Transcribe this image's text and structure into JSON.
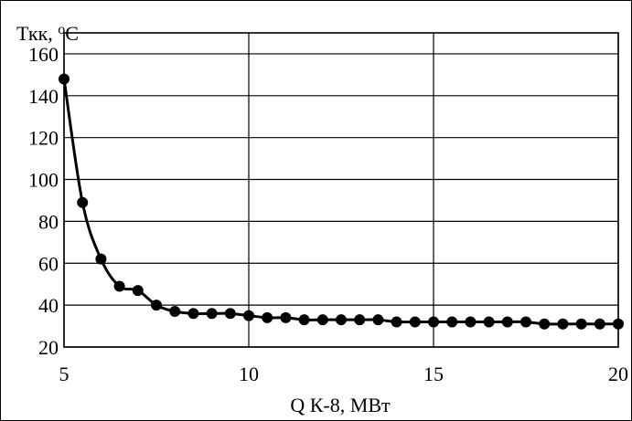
{
  "chart_data": {
    "type": "line",
    "ylabel": "Ткк, ",
    "ylabel_sup": "о",
    "ylabel_unit": "С",
    "xlabel": "Q К-8, МВт",
    "xlim": [
      5,
      20
    ],
    "ylim": [
      20,
      170
    ],
    "xticks": [
      5,
      10,
      15,
      20
    ],
    "yticks": [
      20,
      40,
      60,
      80,
      100,
      120,
      140,
      160
    ],
    "grid": true,
    "series": [
      {
        "color": "#000000",
        "x": [
          5.0,
          5.5,
          6.0,
          6.5,
          7.0,
          7.5,
          8.0,
          8.5,
          9.0,
          9.5,
          10.0,
          10.5,
          11.0,
          11.5,
          12.0,
          12.5,
          13.0,
          13.5,
          14.0,
          14.5,
          15.0,
          15.5,
          16.0,
          16.5,
          17.0,
          17.5,
          18.0,
          18.5,
          19.0,
          19.5,
          20.0
        ],
        "y": [
          148,
          89,
          62,
          49,
          47,
          40,
          37,
          36,
          36,
          36,
          35,
          34,
          34,
          33,
          33,
          33,
          33,
          33,
          32,
          32,
          32,
          32,
          32,
          32,
          32,
          32,
          31,
          31,
          31,
          31,
          31
        ]
      }
    ]
  }
}
